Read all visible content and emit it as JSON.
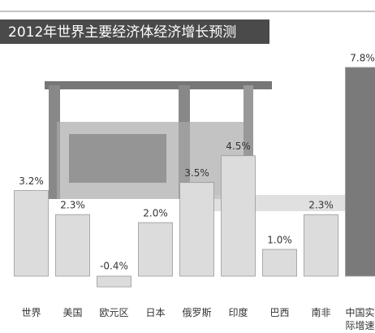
{
  "chart_data": {
    "type": "bar",
    "title": "2012年世界主要经济体经济增长预测",
    "categories": [
      "世界",
      "美国",
      "欧元区",
      "日本",
      "俄罗斯",
      "印度",
      "巴西",
      "南非",
      "中国实际增速"
    ],
    "values": [
      3.2,
      2.3,
      -0.4,
      2.0,
      3.5,
      4.5,
      1.0,
      2.3,
      7.8
    ],
    "value_labels": [
      "3.2%",
      "2.3%",
      "-0.4%",
      "2.0%",
      "3.5%",
      "4.5%",
      "1.0%",
      "2.3%",
      "7.8%"
    ],
    "colors": [
      "#dcdcdc",
      "#dcdcdc",
      "#dcdcdc",
      "#dcdcdc",
      "#dcdcdc",
      "#dcdcdc",
      "#dcdcdc",
      "#dcdcdc",
      "#7a7a7a"
    ]
  }
}
